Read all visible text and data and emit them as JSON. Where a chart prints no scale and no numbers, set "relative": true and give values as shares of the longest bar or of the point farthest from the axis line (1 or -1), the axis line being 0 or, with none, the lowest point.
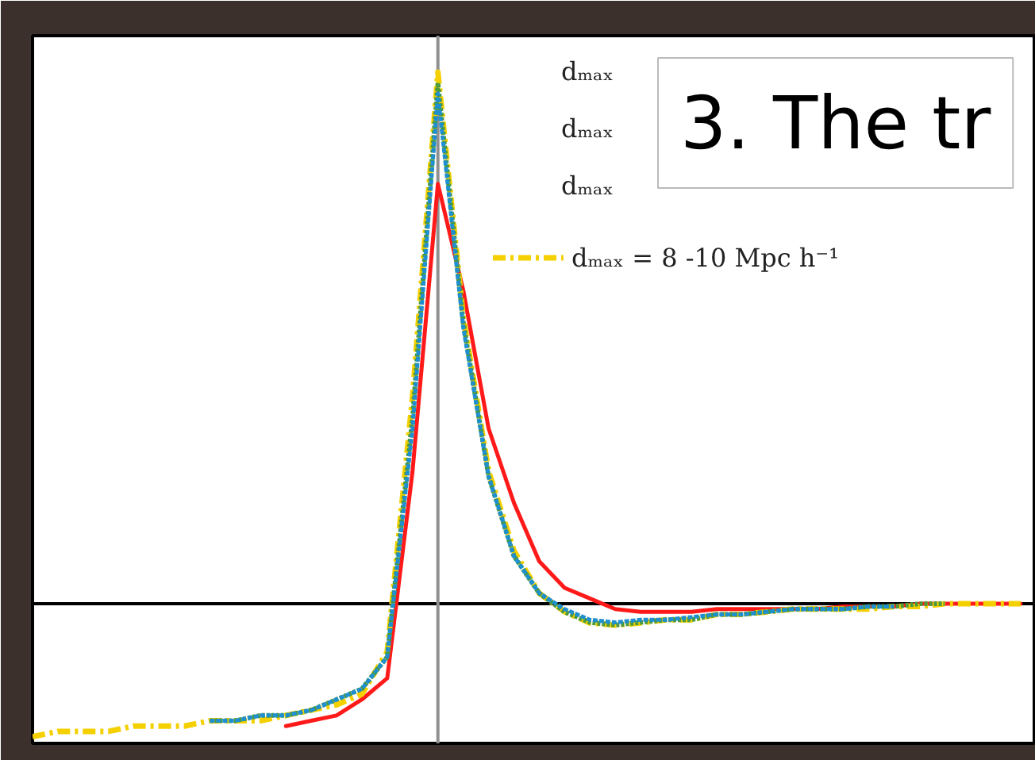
{
  "chart_data": {
    "type": "line",
    "relative": true,
    "categories": [
      null,
      null,
      null,
      null,
      null,
      null,
      null,
      null,
      null,
      null,
      null,
      null,
      null,
      null,
      null,
      null,
      null,
      null,
      null,
      null,
      null,
      null,
      null,
      null,
      null,
      null,
      null,
      null,
      null,
      null,
      null,
      null,
      null,
      null,
      null,
      null,
      null,
      null,
      null,
      null
    ],
    "series": [
      {
        "color": "#ff1a1a",
        "line_style": "solid",
        "values": [
          null,
          null,
          null,
          null,
          null,
          null,
          null,
          null,
          null,
          null,
          -0.23,
          -0.22,
          -0.21,
          -0.18,
          -0.14,
          0.25,
          0.79,
          0.59,
          0.33,
          0.19,
          0.08,
          0.03,
          0.01,
          -0.01,
          -0.015,
          -0.015,
          -0.015,
          -0.01,
          -0.01,
          -0.01,
          -0.01,
          -0.01,
          -0.005,
          -0.005,
          -0.005,
          0,
          0,
          0,
          0,
          0
        ]
      },
      {
        "color": "#1e8fd0",
        "line_style": "dashed",
        "values": [
          null,
          null,
          null,
          null,
          null,
          null,
          null,
          -0.22,
          -0.22,
          -0.21,
          -0.21,
          -0.2,
          -0.18,
          -0.16,
          -0.1,
          0.33,
          0.96,
          0.52,
          0.24,
          0.09,
          0.02,
          -0.01,
          -0.03,
          -0.035,
          -0.03,
          -0.03,
          -0.025,
          -0.02,
          -0.02,
          -0.015,
          -0.01,
          -0.01,
          -0.01,
          -0.005,
          -0.005,
          null,
          null,
          null,
          null,
          null
        ]
      },
      {
        "color": "#4c9a3c",
        "line_style": "dotted",
        "values": [
          null,
          null,
          null,
          null,
          null,
          null,
          null,
          -0.22,
          -0.22,
          -0.21,
          -0.21,
          -0.2,
          -0.18,
          -0.16,
          -0.1,
          0.35,
          0.98,
          0.53,
          0.24,
          0.09,
          0.02,
          -0.015,
          -0.035,
          -0.04,
          -0.035,
          -0.03,
          -0.03,
          -0.02,
          -0.02,
          -0.015,
          -0.01,
          -0.01,
          -0.01,
          -0.005,
          -0.005,
          0,
          0,
          null,
          null,
          null
        ]
      },
      {
        "name": "dₘₐₓ = 8 -10 Mpc h⁻¹",
        "color": "#f5d000",
        "line_style": "dashdot",
        "values": [
          -0.25,
          -0.24,
          -0.24,
          -0.24,
          -0.23,
          -0.23,
          -0.23,
          -0.22,
          -0.22,
          -0.22,
          -0.21,
          -0.2,
          -0.19,
          -0.17,
          -0.09,
          0.39,
          1.0,
          0.54,
          0.25,
          0.1,
          0.02,
          -0.015,
          -0.036,
          -0.04,
          -0.036,
          -0.03,
          -0.03,
          -0.02,
          -0.02,
          -0.015,
          -0.01,
          -0.01,
          -0.01,
          -0.01,
          -0.005,
          -0.005,
          0,
          0,
          0,
          0
        ]
      }
    ],
    "ref_lines": [
      {
        "axis": "y",
        "value": 0,
        "color": "#000000"
      }
    ],
    "legend": "top right",
    "grid": false,
    "annotations": [
      "dₘₐₓ",
      "dₘₐₓ",
      "dₘₐₓ",
      "3. The tr"
    ]
  }
}
